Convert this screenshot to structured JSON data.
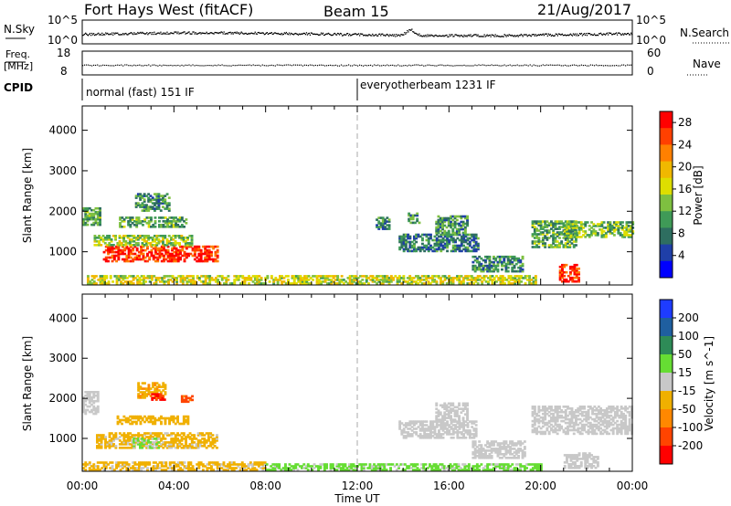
{
  "header": {
    "radar": "Fort Hays West (fitACF)",
    "beam": "Beam 15",
    "date": "21/Aug/2017"
  },
  "noise_panel": {
    "left_label": "N.Sky",
    "left_ticks": [
      "10^5",
      "10^0"
    ],
    "right_label": "N.Search",
    "right_ticks": [
      "10^5",
      "10^0"
    ]
  },
  "freq_panel": {
    "left_label_top": "Freq.",
    "left_label_bottom": "[MHz]",
    "left_ticks": [
      "18",
      "8"
    ],
    "right_label": "Nave",
    "right_ticks": [
      "60",
      "0"
    ]
  },
  "cpid": {
    "label": "CPID",
    "modes": [
      "normal (fast) 151 IF",
      "everyotherbeam 1231 IF"
    ]
  },
  "chart_data": [
    {
      "type": "heatmap",
      "title": "Power",
      "ylabel": "Slant Range [km]",
      "xlabel": "",
      "ylim": [
        180,
        4600
      ],
      "yticks": [
        "1000",
        "2000",
        "3000",
        "4000"
      ],
      "xticks": [
        "00:00",
        "04:00",
        "08:00",
        "12:00",
        "16:00",
        "20:00",
        "00:00"
      ],
      "colorbar": {
        "label": "Power [dB]",
        "ticks": [
          "4",
          "8",
          "12",
          "16",
          "20",
          "24",
          "28"
        ],
        "range": [
          0,
          30
        ],
        "colors": [
          "#0000ff",
          "#1f3fa8",
          "#2e6e60",
          "#3f9a57",
          "#7ec040",
          "#dede00",
          "#f0b800",
          "#ff8000",
          "#ff4000",
          "#ff0000"
        ]
      },
      "regions": [
        {
          "t0": 0.9,
          "t1": 5.9,
          "r0": 750,
          "r1": 1150,
          "value": 27
        },
        {
          "t0": 0.5,
          "t1": 4.8,
          "r0": 1150,
          "r1": 1400,
          "value": 14
        },
        {
          "t0": 1.6,
          "t1": 4.5,
          "r0": 1600,
          "r1": 1850,
          "value": 11
        },
        {
          "t0": 2.3,
          "t1": 3.8,
          "r0": 2000,
          "r1": 2450,
          "value": 10
        },
        {
          "t0": 0.0,
          "t1": 0.8,
          "r0": 1650,
          "r1": 2100,
          "value": 11
        },
        {
          "t0": 0.2,
          "t1": 19.8,
          "r0": 200,
          "r1": 400,
          "value": 16
        },
        {
          "t0": 13.8,
          "t1": 17.3,
          "r0": 1000,
          "r1": 1450,
          "value": 8
        },
        {
          "t0": 15.4,
          "t1": 16.8,
          "r0": 1450,
          "r1": 1900,
          "value": 10
        },
        {
          "t0": 17.0,
          "t1": 19.2,
          "r0": 500,
          "r1": 900,
          "value": 9
        },
        {
          "t0": 19.6,
          "t1": 21.5,
          "r0": 1100,
          "r1": 1750,
          "value": 11
        },
        {
          "t0": 21.0,
          "t1": 24.0,
          "r0": 1350,
          "r1": 1750,
          "value": 13
        },
        {
          "t0": 20.8,
          "t1": 21.7,
          "r0": 250,
          "r1": 700,
          "value": 27
        },
        {
          "t0": 12.8,
          "t1": 13.4,
          "r0": 1550,
          "r1": 1850,
          "value": 9
        },
        {
          "t0": 14.2,
          "t1": 14.7,
          "r0": 1700,
          "r1": 1950,
          "value": 10
        }
      ]
    },
    {
      "type": "heatmap",
      "title": "Velocity",
      "ylabel": "Slant Range [km]",
      "xlabel": "Time UT",
      "ylim": [
        180,
        4600
      ],
      "yticks": [
        "1000",
        "2000",
        "3000",
        "4000"
      ],
      "xticks": [
        "00:00",
        "04:00",
        "08:00",
        "12:00",
        "16:00",
        "20:00",
        "00:00"
      ],
      "colorbar": {
        "label": "Velocity [m s^-1]",
        "ticks": [
          "200",
          "100",
          "50",
          "15",
          "-15",
          "-50",
          "-100",
          "-200"
        ],
        "range": [
          -250,
          250
        ],
        "colors": [
          "#ff0000",
          "#ff4400",
          "#ff8800",
          "#f0b000",
          "#c8c8c8",
          "#66dd33",
          "#2e8b57",
          "#1f5fa0",
          "#1e3cff"
        ]
      },
      "regions": [
        {
          "t0": 0.0,
          "t1": 0.7,
          "r0": 1600,
          "r1": 2150,
          "value": -1
        },
        {
          "t0": 0.6,
          "t1": 5.9,
          "r0": 750,
          "r1": 1150,
          "value": -40
        },
        {
          "t0": 2.2,
          "t1": 3.3,
          "r0": 750,
          "r1": 1000,
          "value": 30
        },
        {
          "t0": 1.5,
          "t1": 4.6,
          "r0": 1350,
          "r1": 1550,
          "value": -60
        },
        {
          "t0": 2.4,
          "t1": 3.6,
          "r0": 2000,
          "r1": 2400,
          "value": -70
        },
        {
          "t0": 3.0,
          "t1": 3.6,
          "r0": 1950,
          "r1": 2100,
          "value": -200
        },
        {
          "t0": 4.3,
          "t1": 4.8,
          "r0": 1900,
          "r1": 2050,
          "value": -150
        },
        {
          "t0": 0.0,
          "t1": 8.0,
          "r0": 200,
          "r1": 420,
          "value": -40
        },
        {
          "t0": 8.0,
          "t1": 20.0,
          "r0": 200,
          "r1": 380,
          "value": 40
        },
        {
          "t0": 13.8,
          "t1": 17.2,
          "r0": 1000,
          "r1": 1450,
          "value": 0
        },
        {
          "t0": 15.4,
          "t1": 16.8,
          "r0": 1450,
          "r1": 1900,
          "value": 0
        },
        {
          "t0": 17.0,
          "t1": 19.3,
          "r0": 500,
          "r1": 950,
          "value": 0
        },
        {
          "t0": 19.6,
          "t1": 24.0,
          "r0": 1100,
          "r1": 1800,
          "value": 0
        },
        {
          "t0": 21.0,
          "t1": 22.5,
          "r0": 250,
          "r1": 650,
          "value": 0
        }
      ]
    }
  ]
}
